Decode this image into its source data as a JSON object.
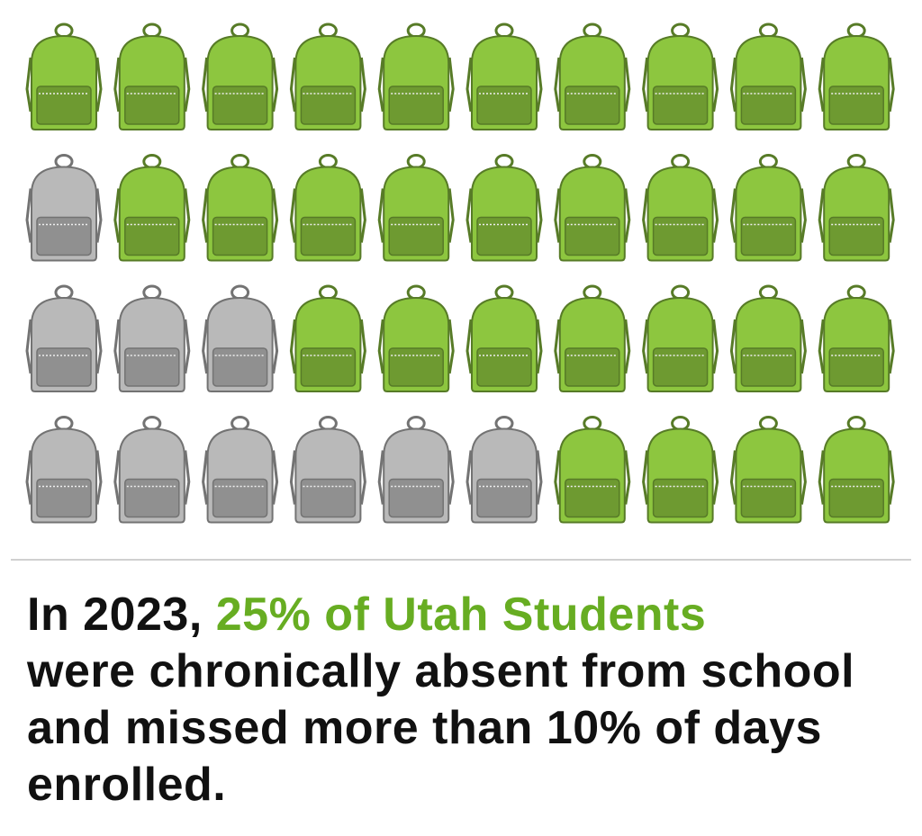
{
  "icons": {
    "columns": 10,
    "rows": [
      {
        "absent": 0
      },
      {
        "absent": 1
      },
      {
        "absent": 3
      },
      {
        "absent": 6
      }
    ],
    "colors": {
      "present": "#8dc63f",
      "absent": "#b9b9b9"
    }
  },
  "caption": {
    "lead": "In 2023,",
    "highlight": "25% of Utah Students",
    "highlight_color": "#67ad22",
    "rest": "were chronically absent from school  and missed more than 10% of days enrolled."
  }
}
